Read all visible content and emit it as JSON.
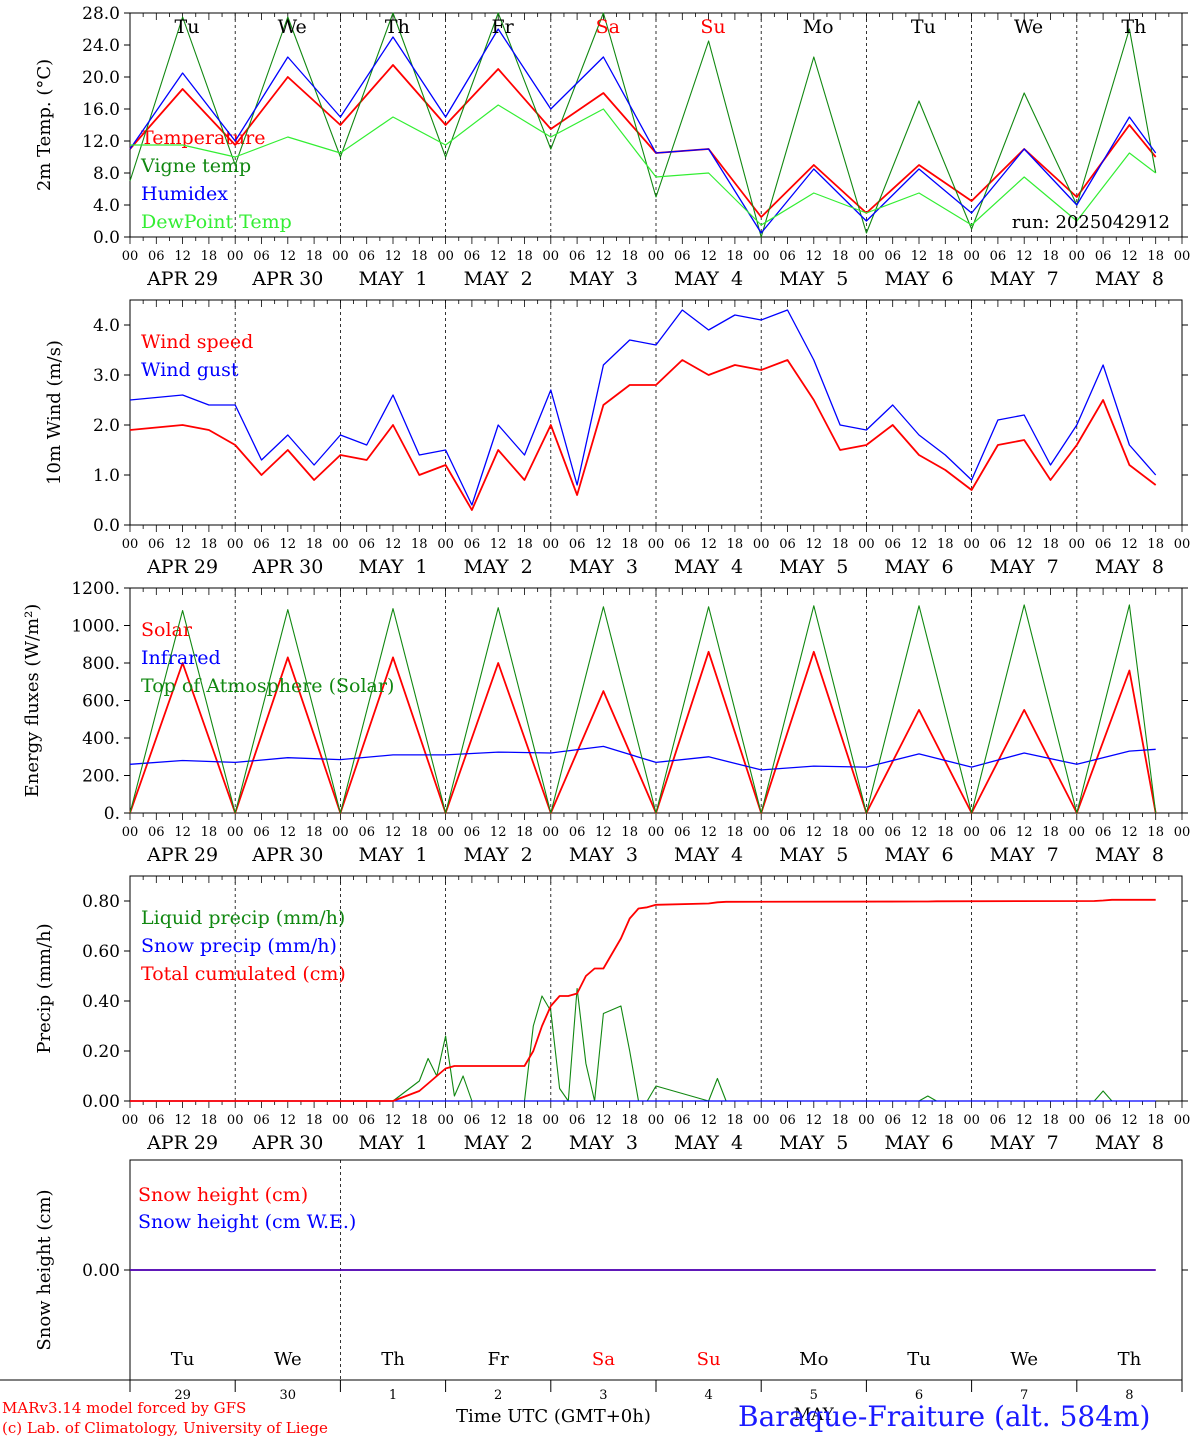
{
  "run_label": "run: 2025042912",
  "colors": {
    "red": "#ff0000",
    "darkgreen": "#118811",
    "blue": "#0000ff",
    "lightgreen": "#33ee33",
    "grid": "#000000"
  },
  "day_names": [
    "Tu",
    "We",
    "Th",
    "Fr",
    "Sa",
    "Su",
    "Mo",
    "Tu",
    "We",
    "Th"
  ],
  "weekend_flags": [
    false,
    false,
    false,
    false,
    true,
    true,
    false,
    false,
    false,
    false
  ],
  "date_labels": [
    "APR 29",
    "APR 30",
    "MAY  1",
    "MAY  2",
    "MAY  3",
    "MAY  4",
    "MAY  5",
    "MAY  6",
    "MAY  7",
    "MAY  8"
  ],
  "hour_ticks": [
    "00",
    "06",
    "12",
    "18"
  ],
  "bottom_day_numbers": [
    "29",
    "30",
    "1",
    "2",
    "3",
    "4",
    "5",
    "6",
    "7",
    "8"
  ],
  "bottom_month_label": "MAY",
  "footer": {
    "model_line": "MARv3.14 model forced by GFS",
    "credit_line": "(c) Lab. of Climatology, University of Liege",
    "xlabel": "Time UTC (GMT+0h)",
    "station": "Baraque-Fraiture (alt. 584m)"
  },
  "chart_data": [
    {
      "type": "line",
      "ylabel": "2m Temp. (°C)",
      "ylim": [
        0,
        28
      ],
      "ytick_labels": [
        "0.0",
        "4.0",
        "8.0",
        "12.0",
        "16.0",
        "20.0",
        "24.0",
        "28.0"
      ],
      "x_hours_since_start": [
        0,
        12,
        24,
        36,
        48,
        60,
        72,
        84,
        96,
        108,
        120,
        132,
        144,
        156,
        168,
        180,
        192,
        204,
        216,
        228,
        234
      ],
      "series": [
        {
          "name": "Temperature",
          "color": "red",
          "values": [
            11.0,
            18.5,
            11.5,
            20.0,
            14.0,
            21.5,
            14.0,
            21.0,
            13.5,
            18.0,
            10.5,
            11.0,
            2.5,
            9.0,
            3.0,
            9.0,
            4.5,
            11.0,
            5.0,
            14.0,
            10.0
          ]
        },
        {
          "name": "Vigne temp",
          "color": "darkgreen",
          "values": [
            7.0,
            27.5,
            9.0,
            27.5,
            10.0,
            28.0,
            10.0,
            28.0,
            11.0,
            28.0,
            5.0,
            24.5,
            0.0,
            22.5,
            0.5,
            17.0,
            1.0,
            18.0,
            4.0,
            26.0,
            8.0
          ]
        },
        {
          "name": "Humidex",
          "color": "blue",
          "values": [
            11.0,
            20.5,
            12.0,
            22.5,
            15.0,
            25.0,
            15.0,
            26.0,
            16.0,
            22.5,
            10.5,
            11.0,
            0.5,
            8.5,
            2.0,
            8.5,
            3.0,
            11.0,
            4.0,
            15.0,
            10.5
          ]
        },
        {
          "name": "DewPoint Temp",
          "color": "lightgreen",
          "values": [
            11.5,
            11.5,
            10.0,
            12.5,
            10.5,
            15.0,
            11.5,
            16.5,
            12.5,
            16.0,
            7.5,
            8.0,
            1.5,
            5.5,
            3.0,
            5.5,
            1.5,
            7.5,
            2.0,
            10.5,
            8.0
          ]
        }
      ]
    },
    {
      "type": "line",
      "ylabel": "10m Wind (m/s)",
      "ylim": [
        0,
        4.5
      ],
      "ytick_labels": [
        "0.0",
        "1.0",
        "2.0",
        "3.0",
        "4.0"
      ],
      "x_hours_since_start": [
        0,
        12,
        18,
        24,
        30,
        36,
        42,
        48,
        54,
        60,
        66,
        72,
        78,
        84,
        90,
        96,
        102,
        108,
        114,
        120,
        126,
        132,
        138,
        144,
        150,
        156,
        162,
        168,
        174,
        180,
        186,
        192,
        198,
        204,
        210,
        216,
        222,
        228,
        234
      ],
      "series": [
        {
          "name": "Wind speed",
          "color": "red",
          "values": [
            1.9,
            2.0,
            1.9,
            1.6,
            1.0,
            1.5,
            0.9,
            1.4,
            1.3,
            2.0,
            1.0,
            1.2,
            0.3,
            1.5,
            0.9,
            2.0,
            0.6,
            2.4,
            2.8,
            2.8,
            3.3,
            3.0,
            3.2,
            3.1,
            3.3,
            2.5,
            1.5,
            1.6,
            2.0,
            1.4,
            1.1,
            0.7,
            1.6,
            1.7,
            0.9,
            1.6,
            2.5,
            1.2,
            0.8
          ]
        },
        {
          "name": "Wind gust",
          "color": "blue",
          "values": [
            2.5,
            2.6,
            2.4,
            2.4,
            1.3,
            1.8,
            1.2,
            1.8,
            1.6,
            2.6,
            1.4,
            1.5,
            0.4,
            2.0,
            1.4,
            2.7,
            0.8,
            3.2,
            3.7,
            3.6,
            4.3,
            3.9,
            4.2,
            4.1,
            4.3,
            3.3,
            2.0,
            1.9,
            2.4,
            1.8,
            1.4,
            0.9,
            2.1,
            2.2,
            1.2,
            2.0,
            3.2,
            1.6,
            1.0
          ]
        }
      ]
    },
    {
      "type": "line",
      "ylabel": "Energy fluxes (W/m²)",
      "ylim": [
        0,
        1200
      ],
      "ytick_labels": [
        "0.",
        "200.",
        "400.",
        "600.",
        "800.",
        "1000.",
        "1200."
      ],
      "x_hours_since_start": [
        0,
        12,
        24,
        36,
        48,
        60,
        72,
        84,
        96,
        108,
        120,
        132,
        144,
        156,
        168,
        180,
        192,
        204,
        216,
        228,
        234
      ],
      "series": [
        {
          "name": "Solar",
          "color": "red",
          "values": [
            0,
            800,
            0,
            830,
            0,
            830,
            0,
            800,
            0,
            650,
            0,
            860,
            0,
            860,
            0,
            550,
            0,
            550,
            0,
            760,
            0
          ]
        },
        {
          "name": "Infrared",
          "color": "blue",
          "values": [
            260,
            280,
            270,
            295,
            285,
            310,
            310,
            325,
            320,
            355,
            270,
            300,
            230,
            250,
            245,
            315,
            245,
            320,
            260,
            330,
            340
          ]
        },
        {
          "name": "Top of Atmosphere (Solar)",
          "color": "darkgreen",
          "values": [
            0,
            1080,
            0,
            1085,
            0,
            1090,
            0,
            1095,
            0,
            1100,
            0,
            1100,
            0,
            1105,
            0,
            1105,
            0,
            1110,
            0,
            1110,
            0
          ]
        }
      ]
    },
    {
      "type": "line",
      "ylabel": "Precip (mm/h)",
      "ylim": [
        0,
        0.9
      ],
      "ytick_labels": [
        "0.00",
        "0.20",
        "0.40",
        "0.60",
        "0.80"
      ],
      "x_hours_since_start": [
        0,
        60,
        66,
        68,
        70,
        72,
        74,
        76,
        78,
        84,
        90,
        92,
        94,
        96,
        98,
        100,
        102,
        104,
        106,
        108,
        112,
        114,
        116,
        118,
        120,
        132,
        134,
        136,
        180,
        182,
        184,
        220,
        222,
        224,
        234
      ],
      "series": [
        {
          "name": "Liquid precip (mm/h)",
          "color": "darkgreen",
          "values": [
            0,
            0,
            0.08,
            0.17,
            0.1,
            0.26,
            0.02,
            0.1,
            0,
            0,
            0,
            0.3,
            0.42,
            0.36,
            0.05,
            0,
            0.45,
            0.15,
            0,
            0.35,
            0.38,
            0.2,
            0,
            0,
            0.06,
            0,
            0.09,
            0,
            0,
            0.02,
            0,
            0,
            0.04,
            0,
            0
          ]
        },
        {
          "name": "Snow precip (mm/h)",
          "color": "blue",
          "values": [
            0,
            0,
            0,
            0,
            0,
            0,
            0,
            0,
            0,
            0,
            0,
            0,
            0,
            0,
            0,
            0,
            0,
            0,
            0,
            0,
            0,
            0,
            0,
            0,
            0,
            0,
            0,
            0,
            0,
            0,
            0,
            0,
            0,
            0,
            0
          ]
        },
        {
          "name": "Total cumulated (cm)",
          "color": "red",
          "values": [
            0,
            0,
            0.04,
            0.07,
            0.1,
            0.13,
            0.14,
            0.14,
            0.14,
            0.14,
            0.14,
            0.2,
            0.3,
            0.38,
            0.42,
            0.42,
            0.43,
            0.5,
            0.53,
            0.53,
            0.65,
            0.73,
            0.77,
            0.775,
            0.785,
            0.79,
            0.795,
            0.797,
            0.798,
            0.798,
            0.799,
            0.8,
            0.802,
            0.805,
            0.805
          ]
        }
      ]
    },
    {
      "type": "line",
      "ylabel": "Snow height (cm)",
      "ytick_labels": [
        "0.00"
      ],
      "x_hours_since_start": [
        0,
        234
      ],
      "series": [
        {
          "name": "Snow height (cm)",
          "color": "red",
          "values": [
            0,
            0
          ]
        },
        {
          "name": "Snow height (cm W.E.)",
          "color": "blue",
          "values": [
            0,
            0
          ]
        }
      ]
    }
  ]
}
